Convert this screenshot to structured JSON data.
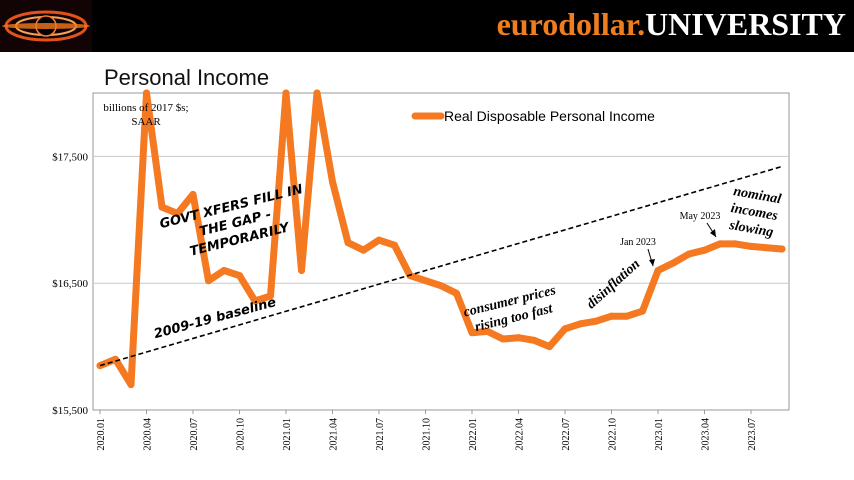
{
  "header": {
    "brand_part1": "eurodollar.",
    "brand_part2": "UNIVERSITY",
    "logo_icon": "black-hole-logo-icon"
  },
  "page_title": "Personal Income",
  "chart_data": {
    "type": "line",
    "title": "Personal Income",
    "units_note_line1": "billions of 2017 $s;",
    "units_note_line2": "SAAR",
    "legend": "Real Disposable Personal Income",
    "legend_position": "top-center",
    "ylim": [
      15500,
      18000
    ],
    "y_ticks": [
      15500,
      16500,
      17500
    ],
    "y_tick_labels": [
      "$15,500",
      "$16,500",
      "$17,500"
    ],
    "x_tick_labels": [
      "2020.01",
      "2020.04",
      "2020.07",
      "2020.10",
      "2021.01",
      "2021.04",
      "2021.07",
      "2021.10",
      "2022.01",
      "2022.04",
      "2022.07",
      "2022.10",
      "2023.01",
      "2023.04",
      "2023.07"
    ],
    "grid": true,
    "series": [
      {
        "name": "Real Disposable Personal Income",
        "color": "#f47920",
        "x": [
          "2020.01",
          "2020.02",
          "2020.03",
          "2020.04",
          "2020.05",
          "2020.06",
          "2020.07",
          "2020.08",
          "2020.09",
          "2020.10",
          "2020.11",
          "2020.12",
          "2021.01",
          "2021.02",
          "2021.03",
          "2021.04",
          "2021.05",
          "2021.06",
          "2021.07",
          "2021.08",
          "2021.09",
          "2021.10",
          "2021.11",
          "2021.12",
          "2022.01",
          "2022.02",
          "2022.03",
          "2022.04",
          "2022.05",
          "2022.06",
          "2022.07",
          "2022.08",
          "2022.09",
          "2022.10",
          "2022.11",
          "2022.12",
          "2023.01",
          "2023.02",
          "2023.03",
          "2023.04",
          "2023.05",
          "2023.06",
          "2023.07",
          "2023.08",
          "2023.09"
        ],
        "values": [
          15850,
          15900,
          15700,
          18000,
          17100,
          17050,
          17200,
          16520,
          16600,
          16560,
          16360,
          16400,
          18000,
          16600,
          18000,
          17300,
          16820,
          16760,
          16840,
          16800,
          16560,
          16520,
          16480,
          16420,
          16110,
          16120,
          16060,
          16070,
          16050,
          16000,
          16140,
          16180,
          16200,
          16240,
          16240,
          16280,
          16600,
          16660,
          16730,
          16760,
          16810,
          16810,
          16790,
          16780,
          16770
        ]
      },
      {
        "name": "2009-19 baseline",
        "style": "dashed",
        "color": "#000000",
        "x": [
          "2020.01",
          "2023.09"
        ],
        "values": [
          15850,
          17420
        ]
      }
    ],
    "annotations": [
      {
        "text_lines": [
          "GOVT XFERS FILL IN",
          "THE GAP -",
          "TEMPORARILY"
        ]
      },
      {
        "text_lines": [
          "2009-19 baseline"
        ]
      },
      {
        "text_lines": [
          "consumer prices",
          "rising too fast"
        ]
      },
      {
        "text_lines": [
          "disinflation"
        ]
      },
      {
        "text_lines": [
          "Jan 2023"
        ]
      },
      {
        "text_lines": [
          "May 2023"
        ]
      },
      {
        "text_lines": [
          "nominal",
          "incomes",
          "slowing"
        ]
      }
    ]
  }
}
